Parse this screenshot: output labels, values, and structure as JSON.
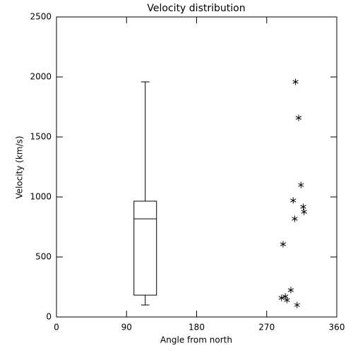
{
  "chart_data": {
    "type": "box",
    "title": "Velocity distribution",
    "xlabel": "Angle from north",
    "ylabel": "Velocity (km/s)",
    "xlim": [
      0,
      360
    ],
    "xticks": [
      0,
      90,
      180,
      270,
      360
    ],
    "ylim": [
      0,
      2500
    ],
    "yticks": [
      0,
      500,
      1000,
      1500,
      2000,
      2500
    ],
    "color": "#000000",
    "boxes": [
      {
        "x": 114,
        "whislo": 100,
        "q1": 182,
        "med": 818,
        "q3": 965,
        "whishi": 1959
      }
    ],
    "points": {
      "x": [
        307,
        311,
        314,
        304,
        317,
        318,
        306,
        291,
        301,
        294,
        289,
        296,
        309
      ],
      "y": [
        1959,
        1659,
        1100,
        971,
        918,
        876,
        818,
        606,
        224,
        171,
        159,
        141,
        100
      ]
    }
  }
}
